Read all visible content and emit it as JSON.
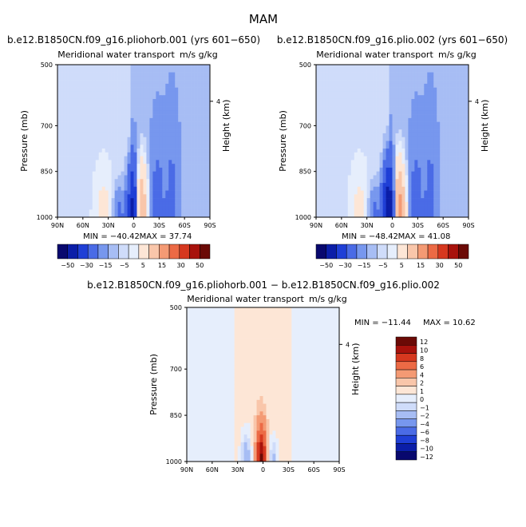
{
  "figure": {
    "title": "MAM",
    "diff_title": "b.e12.B1850CN.f09_g16.pliohorb.001 − b.e12.B1850CN.f09_g16.plio.002"
  },
  "chart_data": [
    {
      "type": "heatmap",
      "run_title": "b.e12.B1850CN.f09_g16.pliohorb.001 (yrs 601−650)",
      "field_title": "Meridional water transport",
      "units": "m/s g/kg",
      "xlabel": "",
      "ylabel": "Pressure (mb)",
      "y2label": "Height (km)",
      "x_ticks": [
        "90N",
        "60N",
        "30N",
        "0",
        "30S",
        "60S",
        "90S"
      ],
      "y_ticks": [
        500,
        700,
        850,
        1000
      ],
      "y2_ticks": [
        4
      ],
      "xlim": [
        90,
        -90
      ],
      "ylim": [
        1000,
        500
      ],
      "min_label": "MIN = −40.42",
      "max_label": "MAX =  37.74",
      "min": -40.42,
      "max": 37.74,
      "colorbar": {
        "orientation": "horizontal",
        "labels": [
          "−50",
          "−30",
          "−15",
          "−5",
          "5",
          "15",
          "30",
          "50"
        ]
      },
      "features": [
        {
          "lat": 0,
          "p": 1000,
          "value": -40,
          "spread_lat": 7,
          "spread_p": 160
        },
        {
          "lat": -8,
          "p": 1000,
          "value": 37,
          "spread_lat": 7,
          "spread_p": 160
        },
        {
          "lat": 18,
          "p": 1000,
          "value": -8,
          "spread_lat": 8,
          "spread_p": 110
        },
        {
          "lat": 35,
          "p": 1000,
          "value": 6,
          "spread_lat": 10,
          "spread_p": 140
        },
        {
          "lat": -28,
          "p": 1000,
          "value": -6,
          "spread_lat": 8,
          "spread_p": 260
        },
        {
          "lat": -45,
          "p": 1000,
          "value": -5,
          "spread_lat": 8,
          "spread_p": 320
        }
      ]
    },
    {
      "type": "heatmap",
      "run_title": "b.e12.B1850CN.f09_g16.plio.002 (yrs 601−650)",
      "field_title": "Meridional water transport",
      "units": "m/s g/kg",
      "xlabel": "",
      "ylabel": "Pressure (mb)",
      "y2label": "Height (km)",
      "x_ticks": [
        "90N",
        "60N",
        "30N",
        "0",
        "30S",
        "60S",
        "90S"
      ],
      "y_ticks": [
        500,
        700,
        850,
        1000
      ],
      "y2_ticks": [
        4
      ],
      "xlim": [
        90,
        -90
      ],
      "ylim": [
        1000,
        500
      ],
      "min_label": "MIN = −48.42",
      "max_label": "MAX =  41.08",
      "min": -48.42,
      "max": 41.08,
      "colorbar": {
        "orientation": "horizontal",
        "labels": [
          "−50",
          "−30",
          "−15",
          "−5",
          "5",
          "15",
          "30",
          "50"
        ]
      },
      "features": [
        {
          "lat": 4,
          "p": 1000,
          "value": -48,
          "spread_lat": 7,
          "spread_p": 160
        },
        {
          "lat": -8,
          "p": 1000,
          "value": 41,
          "spread_lat": 7,
          "spread_p": 160
        },
        {
          "lat": 22,
          "p": 1000,
          "value": -8,
          "spread_lat": 8,
          "spread_p": 110
        },
        {
          "lat": 38,
          "p": 1000,
          "value": 6,
          "spread_lat": 10,
          "spread_p": 140
        },
        {
          "lat": -28,
          "p": 1000,
          "value": -6,
          "spread_lat": 8,
          "spread_p": 260
        },
        {
          "lat": -45,
          "p": 1000,
          "value": -5,
          "spread_lat": 8,
          "spread_p": 320
        }
      ]
    },
    {
      "type": "heatmap",
      "run_title": "",
      "field_title": "Meridional water transport",
      "units": "m/s g/kg",
      "xlabel": "",
      "ylabel": "Pressure (mb)",
      "y2label": "Height (km)",
      "x_ticks": [
        "90N",
        "60N",
        "30N",
        "0",
        "30S",
        "60S",
        "90S"
      ],
      "y_ticks": [
        500,
        700,
        850,
        1000
      ],
      "y2_ticks": [
        4
      ],
      "xlim": [
        90,
        -90
      ],
      "ylim": [
        1000,
        500
      ],
      "min_label": "MIN = −11.44",
      "max_label": "MAX =  10.62",
      "min": -11.44,
      "max": 10.62,
      "colorbar": {
        "orientation": "vertical",
        "labels": [
          "12",
          "10",
          "8",
          "6",
          "4",
          "2",
          "1",
          "0",
          "−1",
          "−2",
          "−4",
          "−6",
          "−8",
          "−10",
          "−12"
        ]
      },
      "features": [
        {
          "lat": 2,
          "p": 1000,
          "value": 10,
          "spread_lat": 6,
          "spread_p": 120
        },
        {
          "lat": 20,
          "p": 1000,
          "value": -4,
          "spread_lat": 6,
          "spread_p": 90
        },
        {
          "lat": -12,
          "p": 1000,
          "value": -3,
          "spread_lat": 5,
          "spread_p": 80
        }
      ]
    }
  ],
  "colors": {
    "diverging": [
      "#08086e",
      "#0b1ea8",
      "#1f3fd6",
      "#4a6be6",
      "#7797ee",
      "#a7bdf4",
      "#cfdcfa",
      "#e6eefc",
      "#fde6d6",
      "#f9c6aa",
      "#f49a74",
      "#ec6a45",
      "#d6381f",
      "#a8120c",
      "#6b0a06"
    ]
  }
}
